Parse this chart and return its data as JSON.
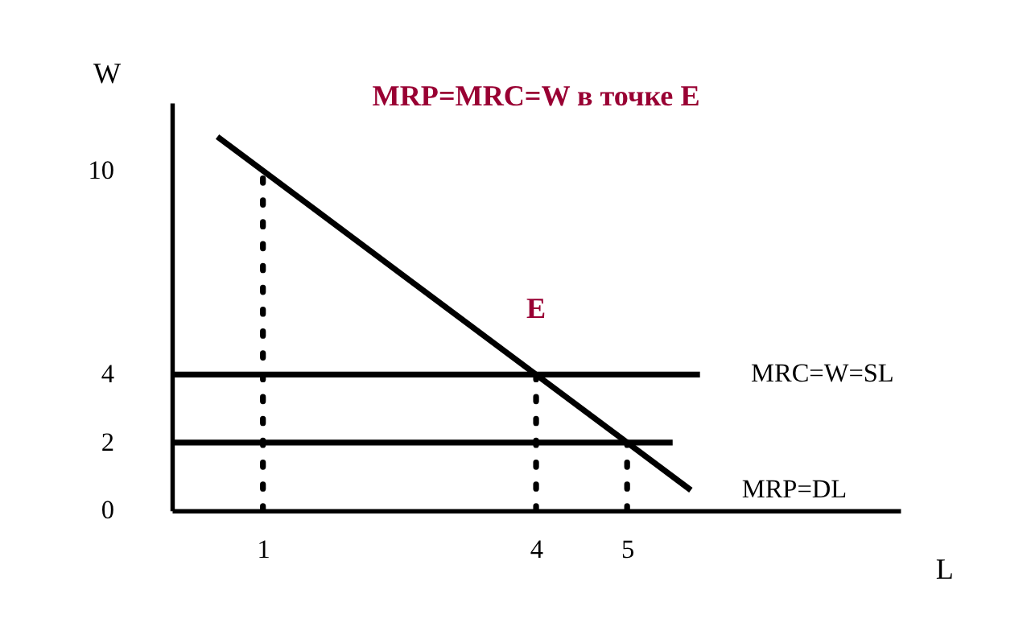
{
  "chart_data": {
    "type": "line",
    "title": "MRP=MRC=W в точке E",
    "xlabel": "L",
    "ylabel": "W",
    "xlim": [
      0,
      8
    ],
    "ylim": [
      0,
      12
    ],
    "xticks": [
      1,
      4,
      5
    ],
    "yticks": [
      0,
      2,
      4,
      10
    ],
    "grid": false,
    "marker": "none",
    "series": [
      {
        "name": "MRP=DL",
        "color": "#000000",
        "x": [
          0.5,
          5.7
        ],
        "values": [
          11,
          0.6
        ],
        "line_style": "solid"
      },
      {
        "name": "MRC=W=SL",
        "color": "#000000",
        "x": [
          0,
          5.8
        ],
        "values": [
          4,
          4
        ],
        "line_style": "solid"
      },
      {
        "color": "#000000",
        "x": [
          0,
          5.5
        ],
        "values": [
          2,
          2
        ],
        "line_style": "solid"
      },
      {
        "color": "#000000",
        "x": [
          1,
          1
        ],
        "values": [
          0,
          10
        ],
        "line_style": "dotted"
      },
      {
        "color": "#000000",
        "x": [
          4,
          4
        ],
        "values": [
          0,
          4
        ],
        "line_style": "dotted"
      },
      {
        "color": "#000000",
        "x": [
          5,
          5
        ],
        "values": [
          0,
          2
        ],
        "line_style": "dotted"
      }
    ],
    "annotations": [
      {
        "text": "E",
        "x": 4,
        "y": 4
      }
    ]
  }
}
